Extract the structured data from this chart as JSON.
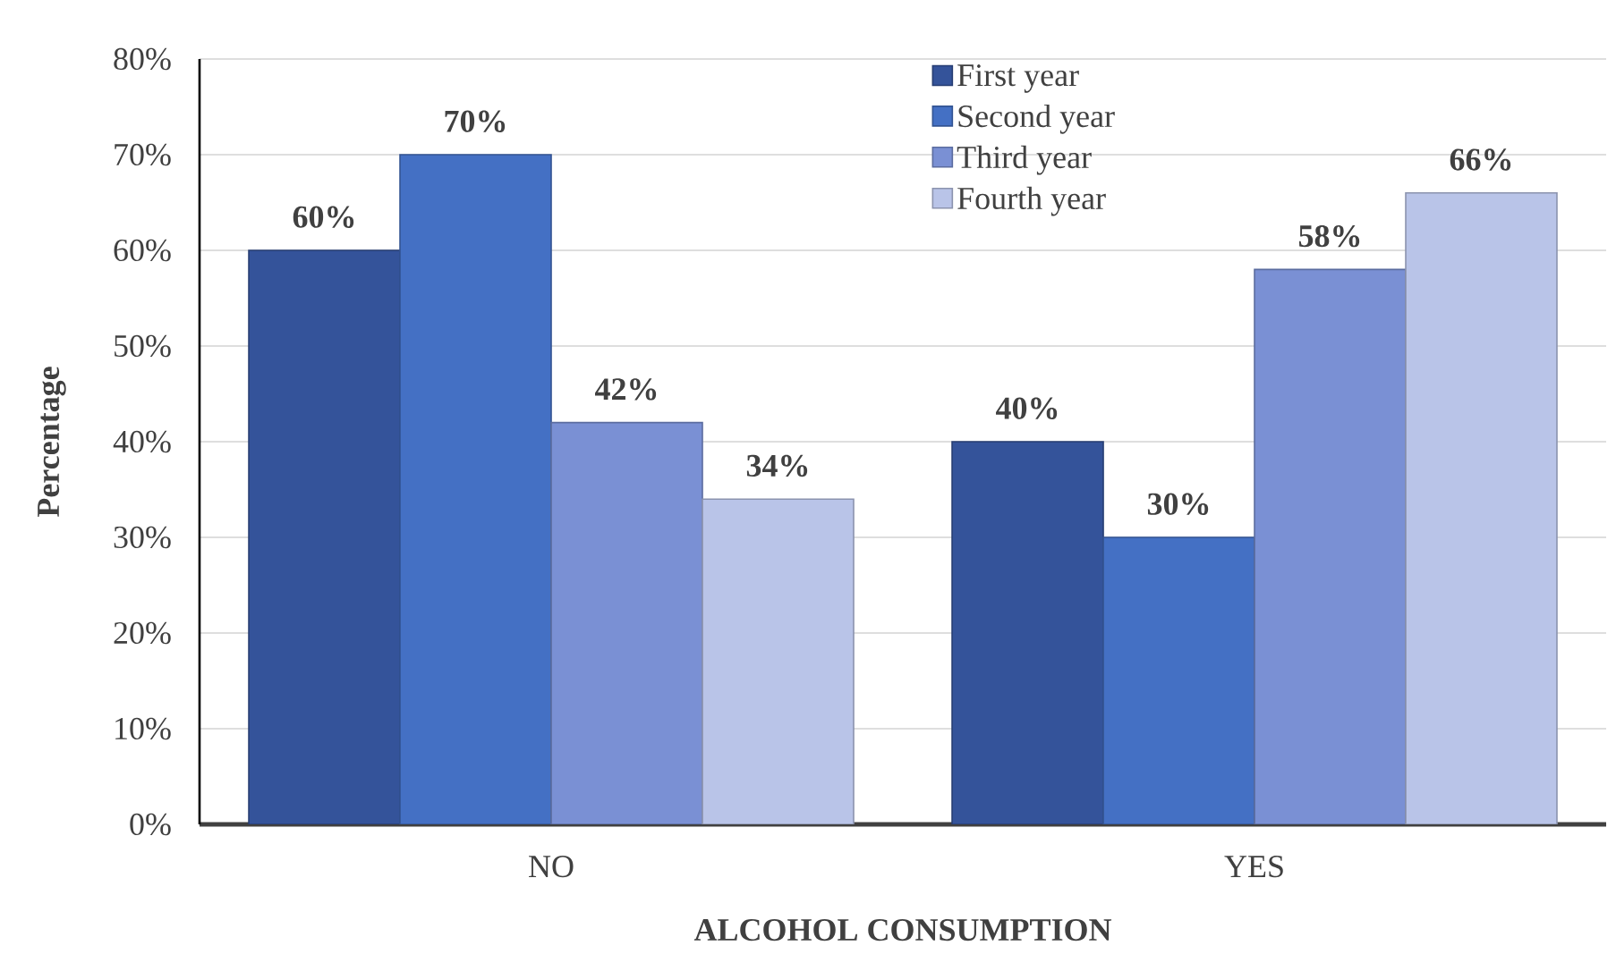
{
  "chart_data": {
    "type": "bar",
    "xlabel": "ALCOHOL CONSUMPTION",
    "ylabel": "Percentage",
    "categories": [
      "NO",
      "YES"
    ],
    "series": [
      {
        "name": "First year",
        "color": "#34539a",
        "values": [
          60,
          40
        ],
        "value_labels": [
          "60%",
          "40%"
        ]
      },
      {
        "name": "Second year",
        "color": "#4470c4",
        "values": [
          70,
          30
        ],
        "value_labels": [
          "70%",
          "30%"
        ]
      },
      {
        "name": "Third year",
        "color": "#7a90d4",
        "values": [
          42,
          58
        ],
        "value_labels": [
          "42%",
          "58%"
        ]
      },
      {
        "name": "Fourth year",
        "color": "#b9c4e8",
        "values": [
          34,
          66
        ],
        "value_labels": [
          "34%",
          "66%"
        ]
      }
    ],
    "ylim": [
      0,
      80
    ],
    "yticks": [
      {
        "value": 0,
        "label": "0%"
      },
      {
        "value": 10,
        "label": "10%"
      },
      {
        "value": 20,
        "label": "20%"
      },
      {
        "value": 30,
        "label": "30%"
      },
      {
        "value": 40,
        "label": "40%"
      },
      {
        "value": 50,
        "label": "50%"
      },
      {
        "value": 60,
        "label": "60%"
      },
      {
        "value": 70,
        "label": "70%"
      },
      {
        "value": 80,
        "label": "80%"
      }
    ],
    "grid": "y",
    "legend": "top"
  }
}
